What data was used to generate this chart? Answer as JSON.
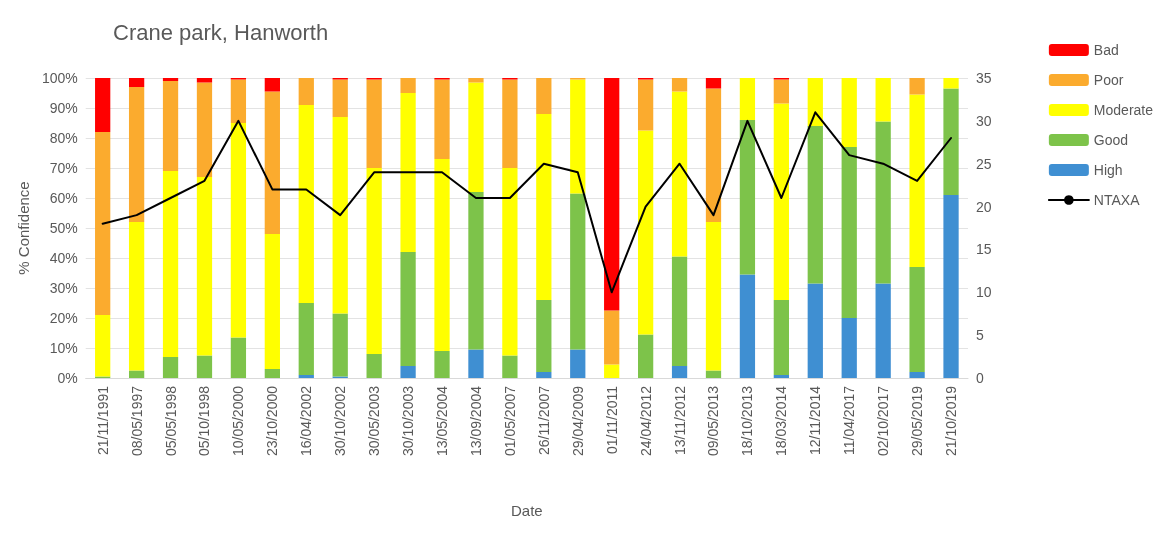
{
  "chart_data": {
    "type": "bar",
    "title": "Crane park, Hanworth",
    "xlabel": "Date",
    "ylabel": "% Confidence",
    "categories": [
      "21/11/1991",
      "08/05/1997",
      "05/05/1998",
      "05/10/1998",
      "10/05/2000",
      "23/10/2000",
      "16/04/2002",
      "30/10/2002",
      "30/05/2003",
      "30/10/2003",
      "13/05/2004",
      "13/09/2004",
      "01/05/2007",
      "26/11/2007",
      "29/04/2009",
      "01/11/2011",
      "24/04/2012",
      "13/11/2012",
      "09/05/2013",
      "18/10/2013",
      "18/03/2014",
      "12/11/2014",
      "11/04/2017",
      "02/10/2017",
      "29/05/2019",
      "21/10/2019"
    ],
    "stacked": true,
    "series": [
      {
        "name": "High",
        "color": "#3f8fd2",
        "values": [
          0,
          0,
          0,
          0,
          0,
          0,
          1,
          0.5,
          0,
          4,
          0,
          9.5,
          0,
          2,
          9.5,
          0,
          0,
          4,
          0,
          34.5,
          1,
          31.5,
          20,
          31.5,
          2,
          61
        ]
      },
      {
        "name": "Good",
        "color": "#7dc34a",
        "values": [
          0.5,
          2.5,
          7,
          7.5,
          13.5,
          3,
          24,
          21,
          8,
          38,
          9,
          52.5,
          7.5,
          24,
          52,
          0,
          14.5,
          36.5,
          2.5,
          51.5,
          25,
          52.5,
          57,
          54,
          35,
          35.5
        ]
      },
      {
        "name": "Moderate",
        "color": "#ffff00",
        "values": [
          20.5,
          49.5,
          62,
          59.5,
          71.5,
          45,
          66,
          65.5,
          62,
          53,
          64,
          36.5,
          62.5,
          62,
          38,
          4.5,
          68,
          55,
          49.5,
          14,
          65.5,
          16,
          23,
          14.5,
          57.5,
          3.5
        ]
      },
      {
        "name": "Poor",
        "color": "#fbab2e",
        "values": [
          61,
          45,
          30,
          31.5,
          14.5,
          47.5,
          9,
          12.5,
          29.5,
          5,
          26.5,
          1.5,
          29.5,
          12,
          0.5,
          18,
          17,
          4.5,
          44.5,
          0,
          8,
          0,
          0,
          0,
          5.5,
          0
        ]
      },
      {
        "name": "Bad",
        "color": "#ff0000",
        "values": [
          18,
          3,
          1,
          1.5,
          0.5,
          4.5,
          0,
          0.5,
          0.5,
          0,
          0.5,
          0,
          0.5,
          0,
          0,
          77.5,
          0.5,
          0,
          3.5,
          0,
          0.5,
          0,
          0,
          0,
          0,
          0
        ]
      },
      {
        "name": "NTAXA",
        "type": "line",
        "axis": "y2",
        "color": "#000000",
        "values": [
          18,
          19,
          21,
          23,
          30,
          22,
          22,
          19,
          24,
          24,
          24,
          21,
          21,
          25,
          24,
          10,
          20,
          25,
          19,
          30,
          21,
          31,
          26,
          25,
          23,
          28
        ]
      }
    ],
    "ylim": [
      0,
      100
    ],
    "yticks": [
      {
        "value": 0,
        "label": "0%"
      },
      {
        "value": 10,
        "label": "10%"
      },
      {
        "value": 20,
        "label": "20%"
      },
      {
        "value": 30,
        "label": "30%"
      },
      {
        "value": 40,
        "label": "40%"
      },
      {
        "value": 50,
        "label": "50%"
      },
      {
        "value": 60,
        "label": "60%"
      },
      {
        "value": 70,
        "label": "70%"
      },
      {
        "value": 80,
        "label": "80%"
      },
      {
        "value": 90,
        "label": "90%"
      },
      {
        "value": 100,
        "label": "100%"
      }
    ],
    "y2lim": [
      0,
      35
    ],
    "y2ticks": [
      0,
      5,
      10,
      15,
      20,
      25,
      30,
      35
    ],
    "grid": "y",
    "legend": "right",
    "marker": "none",
    "line_style": "solid"
  }
}
